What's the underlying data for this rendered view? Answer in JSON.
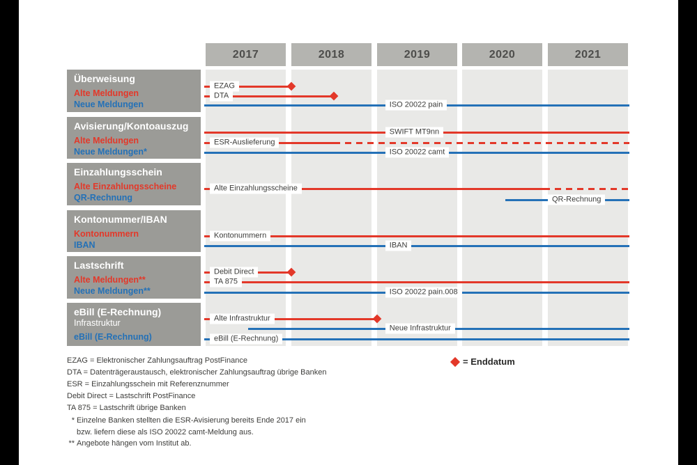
{
  "colors": {
    "red": "#e33829",
    "blue": "#2471b7",
    "sidebar_gray": "#9b9b97",
    "header_gray": "#b4b4b0",
    "strip_gray": "#e9e9e7",
    "white": "#ffffff"
  },
  "legend": {
    "label": "= Enddatum",
    "marker": "enddatum-diamond"
  },
  "footnotes": {
    "definitions": [
      "EZAG = Elektronischer Zahlungsauftrag PostFinance",
      "DTA = Datenträgeraustausch, elektronischer Zahlungsauftrag übrige Banken",
      "ESR = Einzahlungsschein mit Referenznummer",
      "Debit Direct = Lastschrift PostFinance",
      "TA 875 = Lastschrift übrige Banken"
    ],
    "notes": [
      {
        "marker": "*",
        "lines": [
          "Einzelne Banken stellten die ESR-Avisierung bereits Ende 2017 ein",
          "bzw. liefern diese als ISO 20022 camt-Meldung aus."
        ]
      },
      {
        "marker": "**",
        "lines": [
          "Angebote hängen vom Institut ab."
        ]
      }
    ]
  },
  "chart_data": {
    "type": "gantt",
    "x_axis": {
      "unit": "year",
      "categories": [
        "2017",
        "2018",
        "2019",
        "2020",
        "2021"
      ],
      "range": [
        2017,
        2022
      ]
    },
    "legend": [
      {
        "marker": "diamond",
        "color": "red",
        "label": "Enddatum"
      }
    ],
    "groups": [
      {
        "title": "Überweisung",
        "side_labels": [
          {
            "text": "Alte Meldungen",
            "color": "red"
          },
          {
            "text": "Neue Meldungen",
            "color": "blue"
          }
        ],
        "bars": [
          {
            "label": "EZAG",
            "color": "red",
            "start": 2017.0,
            "end": 2018.0,
            "end_marker": "diamond",
            "label_at": "start"
          },
          {
            "label": "DTA",
            "color": "red",
            "start": 2017.0,
            "end": 2018.5,
            "end_marker": "diamond",
            "label_at": "start"
          },
          {
            "label": "ISO 20022 pain",
            "color": "blue",
            "start": 2017.0,
            "end": 2022.0,
            "open_ended": true,
            "label_at": 2019.1
          }
        ]
      },
      {
        "title": "Avisierung/Kontoauszug",
        "side_labels": [
          {
            "text": "Alte Meldungen",
            "color": "red"
          },
          {
            "text": "Neue Meldungen*",
            "color": "blue"
          }
        ],
        "bars": [
          {
            "label": "SWIFT MT9nn",
            "color": "red",
            "start": 2017.0,
            "end": 2022.0,
            "open_ended": true,
            "label_at": 2019.1
          },
          {
            "label": "ESR-Auslieferung",
            "color": "red",
            "start": 2017.0,
            "end": 2022.0,
            "dash_from": 2018.5,
            "open_ended": true,
            "label_at": "start"
          },
          {
            "label": "ISO 20022 camt",
            "color": "blue",
            "start": 2017.0,
            "end": 2022.0,
            "open_ended": true,
            "label_at": 2019.1
          }
        ]
      },
      {
        "title": "Einzahlungsschein",
        "side_labels": [
          {
            "text": "Alte Einzahlungsscheine",
            "color": "red"
          },
          {
            "text": "QR-Rechnung",
            "color": "blue"
          }
        ],
        "bars": [
          {
            "label": "Alte Einzahlungsscheine",
            "color": "red",
            "start": 2017.0,
            "end": 2022.0,
            "dash_from": 2020.95,
            "open_ended": true,
            "label_at": "start"
          },
          {
            "label": "QR-Rechnung",
            "color": "blue",
            "start": 2020.5,
            "end": 2022.0,
            "open_ended": true,
            "label_at": 2021.0
          }
        ]
      },
      {
        "title": "Kontonummer/IBAN",
        "side_labels": [
          {
            "text": "Kontonummern",
            "color": "red"
          },
          {
            "text": "IBAN",
            "color": "blue"
          }
        ],
        "bars": [
          {
            "label": "Kontonummern",
            "color": "red",
            "start": 2017.0,
            "end": 2022.0,
            "open_ended": true,
            "label_at": "start"
          },
          {
            "label": "IBAN",
            "color": "blue",
            "start": 2017.0,
            "end": 2022.0,
            "open_ended": true,
            "label_at": 2019.1
          }
        ]
      },
      {
        "title": "Lastschrift",
        "side_labels": [
          {
            "text": "Alte Meldungen**",
            "color": "red"
          },
          {
            "text": "Neue Meldungen**",
            "color": "blue"
          }
        ],
        "bars": [
          {
            "label": "Debit Direct",
            "color": "red",
            "start": 2017.0,
            "end": 2018.0,
            "end_marker": "diamond",
            "label_at": "start"
          },
          {
            "label": "TA 875",
            "color": "red",
            "start": 2017.0,
            "end": 2022.0,
            "open_ended": true,
            "label_at": "start"
          },
          {
            "label": "ISO 20022 pain.008",
            "color": "blue",
            "start": 2017.0,
            "end": 2022.0,
            "open_ended": true,
            "label_at": 2019.1
          }
        ]
      },
      {
        "title": "eBill (E-Rechnung)",
        "title_line2": "Infrastruktur",
        "side_labels": [
          {
            "text": "eBill (E-Rechnung)",
            "color": "blue"
          }
        ],
        "bars": [
          {
            "label": "Alte Infrastruktur",
            "color": "red",
            "start": 2017.0,
            "end": 2019.0,
            "end_marker": "diamond",
            "label_at": "start"
          },
          {
            "label": "Neue Infrastruktur",
            "color": "blue",
            "start": 2017.5,
            "end": 2022.0,
            "open_ended": true,
            "label_at": 2019.1
          },
          {
            "label": "eBill (E-Rechnung)",
            "color": "blue",
            "start": 2017.0,
            "end": 2022.0,
            "open_ended": true,
            "label_at": "start"
          }
        ]
      }
    ]
  }
}
